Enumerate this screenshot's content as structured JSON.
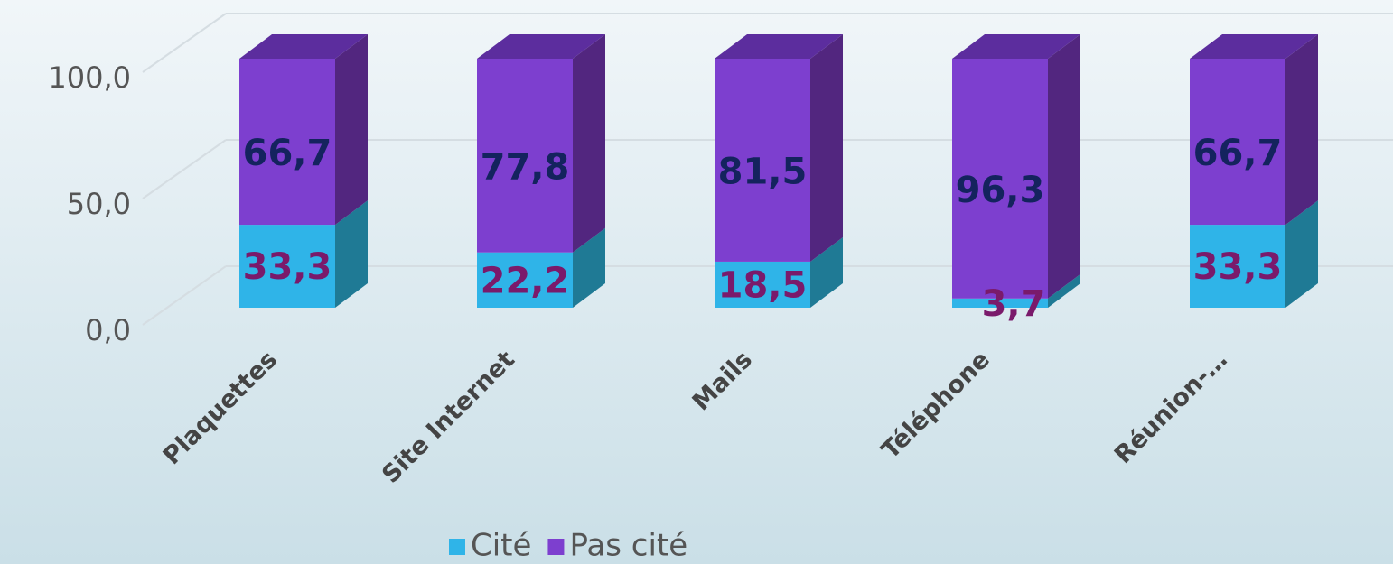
{
  "chart_data": {
    "type": "bar3d_stacked",
    "categories": [
      "Plaquettes",
      "Site Internet",
      "Mails",
      "Téléphone",
      "Réunion-…"
    ],
    "series": [
      {
        "name": "Cité",
        "color": "#2fb4e8",
        "side_color": "#1f7a95",
        "label_color": "#7a1a6b",
        "values": [
          33.3,
          22.2,
          18.5,
          3.7,
          33.3
        ],
        "value_labels": [
          "33,3",
          "22,2",
          "18,5",
          "3,7",
          "33,3"
        ]
      },
      {
        "name": "Pas cité",
        "color": "#7d3fcf",
        "side_color": "#52267f",
        "label_color": "#14235e",
        "values": [
          66.7,
          77.8,
          81.5,
          96.3,
          66.7
        ],
        "value_labels": [
          "66,7",
          "77,8",
          "81,5",
          "96,3",
          "66,7"
        ]
      }
    ],
    "ylim": [
      0,
      100
    ],
    "yticks": [
      {
        "value": 0,
        "label": "0,0"
      },
      {
        "value": 50,
        "label": "50,0"
      },
      {
        "value": 100,
        "label": "100,0"
      }
    ],
    "grid": true
  }
}
